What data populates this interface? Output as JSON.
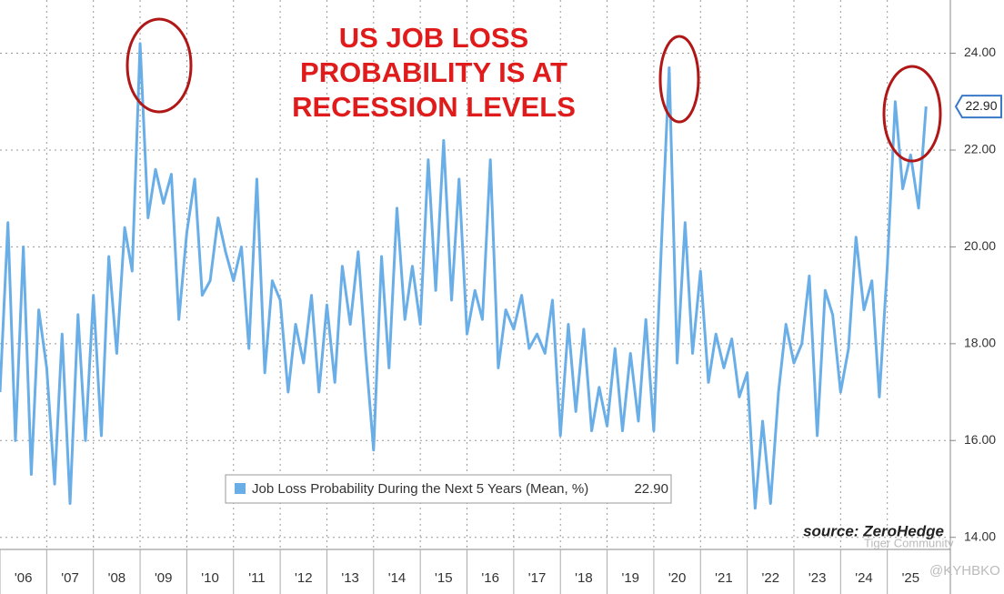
{
  "chart_data": {
    "type": "line",
    "title_lines": [
      "US JOB LOSS",
      "PROBABILITY IS AT",
      "RECESSION LEVELS"
    ],
    "source": "source: ZeroHedge",
    "watermarks": [
      "Tiger Community",
      "@KYHBKO"
    ],
    "x": [
      2006.0,
      2006.17,
      2006.33,
      2006.5,
      2006.67,
      2006.83,
      2007.0,
      2007.17,
      2007.33,
      2007.5,
      2007.67,
      2007.83,
      2008.0,
      2008.17,
      2008.33,
      2008.5,
      2008.67,
      2008.83,
      2009.0,
      2009.17,
      2009.33,
      2009.5,
      2009.67,
      2009.83,
      2010.0,
      2010.17,
      2010.33,
      2010.5,
      2010.67,
      2010.83,
      2011.0,
      2011.17,
      2011.33,
      2011.5,
      2011.67,
      2011.83,
      2012.0,
      2012.17,
      2012.33,
      2012.5,
      2012.67,
      2012.83,
      2013.0,
      2013.17,
      2013.33,
      2013.5,
      2013.67,
      2013.83,
      2014.0,
      2014.17,
      2014.33,
      2014.5,
      2014.67,
      2014.83,
      2015.0,
      2015.17,
      2015.33,
      2015.5,
      2015.67,
      2015.83,
      2016.0,
      2016.17,
      2016.33,
      2016.5,
      2016.67,
      2016.83,
      2017.0,
      2017.17,
      2017.33,
      2017.5,
      2017.67,
      2017.83,
      2018.0,
      2018.17,
      2018.33,
      2018.5,
      2018.67,
      2018.83,
      2019.0,
      2019.17,
      2019.33,
      2019.5,
      2019.67,
      2019.83,
      2020.0,
      2020.17,
      2020.33,
      2020.5,
      2020.67,
      2020.83,
      2021.0,
      2021.17,
      2021.33,
      2021.5,
      2021.67,
      2021.83,
      2022.0,
      2022.17,
      2022.33,
      2022.5,
      2022.67,
      2022.83,
      2023.0,
      2023.17,
      2023.33,
      2023.5,
      2023.67,
      2023.83,
      2024.0,
      2024.17,
      2024.33,
      2024.5,
      2024.67,
      2024.83,
      2025.0,
      2025.17,
      2025.33,
      2025.5,
      2025.67,
      2025.83
    ],
    "series": [
      {
        "name": "Job Loss Probability During the Next 5 Years (Mean, %)",
        "color": "#6aaee8",
        "last_value_label": "22.90",
        "values": [
          17.0,
          20.5,
          16.0,
          20.0,
          15.3,
          18.7,
          17.5,
          15.1,
          18.2,
          14.7,
          18.6,
          16.0,
          19.0,
          16.1,
          19.8,
          17.8,
          20.4,
          19.5,
          24.2,
          20.6,
          21.6,
          20.9,
          21.5,
          18.5,
          20.3,
          21.4,
          19.0,
          19.3,
          20.6,
          19.9,
          19.3,
          20.0,
          17.9,
          21.4,
          17.4,
          19.3,
          18.9,
          17.0,
          18.4,
          17.6,
          19.0,
          17.0,
          18.8,
          17.2,
          19.6,
          18.4,
          19.9,
          17.8,
          15.8,
          19.8,
          17.5,
          20.8,
          18.5,
          19.6,
          18.4,
          21.8,
          19.1,
          22.2,
          18.9,
          21.4,
          18.2,
          19.1,
          18.5,
          21.8,
          17.5,
          18.7,
          18.3,
          19.0,
          17.9,
          18.2,
          17.8,
          18.9,
          16.1,
          18.4,
          16.6,
          18.3,
          16.2,
          17.1,
          16.3,
          17.9,
          16.2,
          17.8,
          16.4,
          18.5,
          16.2,
          20.2,
          23.7,
          17.6,
          20.5,
          17.8,
          19.5,
          17.2,
          18.2,
          17.5,
          18.1,
          16.9,
          17.4,
          14.6,
          16.4,
          14.7,
          17.0,
          18.4,
          17.6,
          18.0,
          19.4,
          16.1,
          19.1,
          18.6,
          17.0,
          17.9,
          20.2,
          18.7,
          19.3,
          16.9,
          19.6,
          23.0,
          21.2,
          21.9,
          20.8,
          22.9
        ]
      }
    ],
    "xlim": [
      2006,
      2026.35
    ],
    "ylim": [
      13.75,
      25.1
    ],
    "xticks": [
      {
        "value": 2006,
        "label": "'06"
      },
      {
        "value": 2007,
        "label": "'07"
      },
      {
        "value": 2008,
        "label": "'08"
      },
      {
        "value": 2009,
        "label": "'09"
      },
      {
        "value": 2010,
        "label": "'10"
      },
      {
        "value": 2011,
        "label": "'11"
      },
      {
        "value": 2012,
        "label": "'12"
      },
      {
        "value": 2013,
        "label": "'13"
      },
      {
        "value": 2014,
        "label": "'14"
      },
      {
        "value": 2015,
        "label": "'15"
      },
      {
        "value": 2016,
        "label": "'16"
      },
      {
        "value": 2017,
        "label": "'17"
      },
      {
        "value": 2018,
        "label": "'18"
      },
      {
        "value": 2019,
        "label": "'19"
      },
      {
        "value": 2020,
        "label": "'20"
      },
      {
        "value": 2021,
        "label": "'21"
      },
      {
        "value": 2022,
        "label": "'22"
      },
      {
        "value": 2023,
        "label": "'23"
      },
      {
        "value": 2024,
        "label": "'24"
      },
      {
        "value": 2025,
        "label": "'25"
      }
    ],
    "yticks": [
      {
        "value": 14,
        "label": "14.00"
      },
      {
        "value": 16,
        "label": "16.00"
      },
      {
        "value": 18,
        "label": "18.00"
      },
      {
        "value": 20,
        "label": "20.00"
      },
      {
        "value": 22,
        "label": "22.00"
      },
      {
        "value": 24,
        "label": "24.00"
      }
    ],
    "grid": true
  }
}
